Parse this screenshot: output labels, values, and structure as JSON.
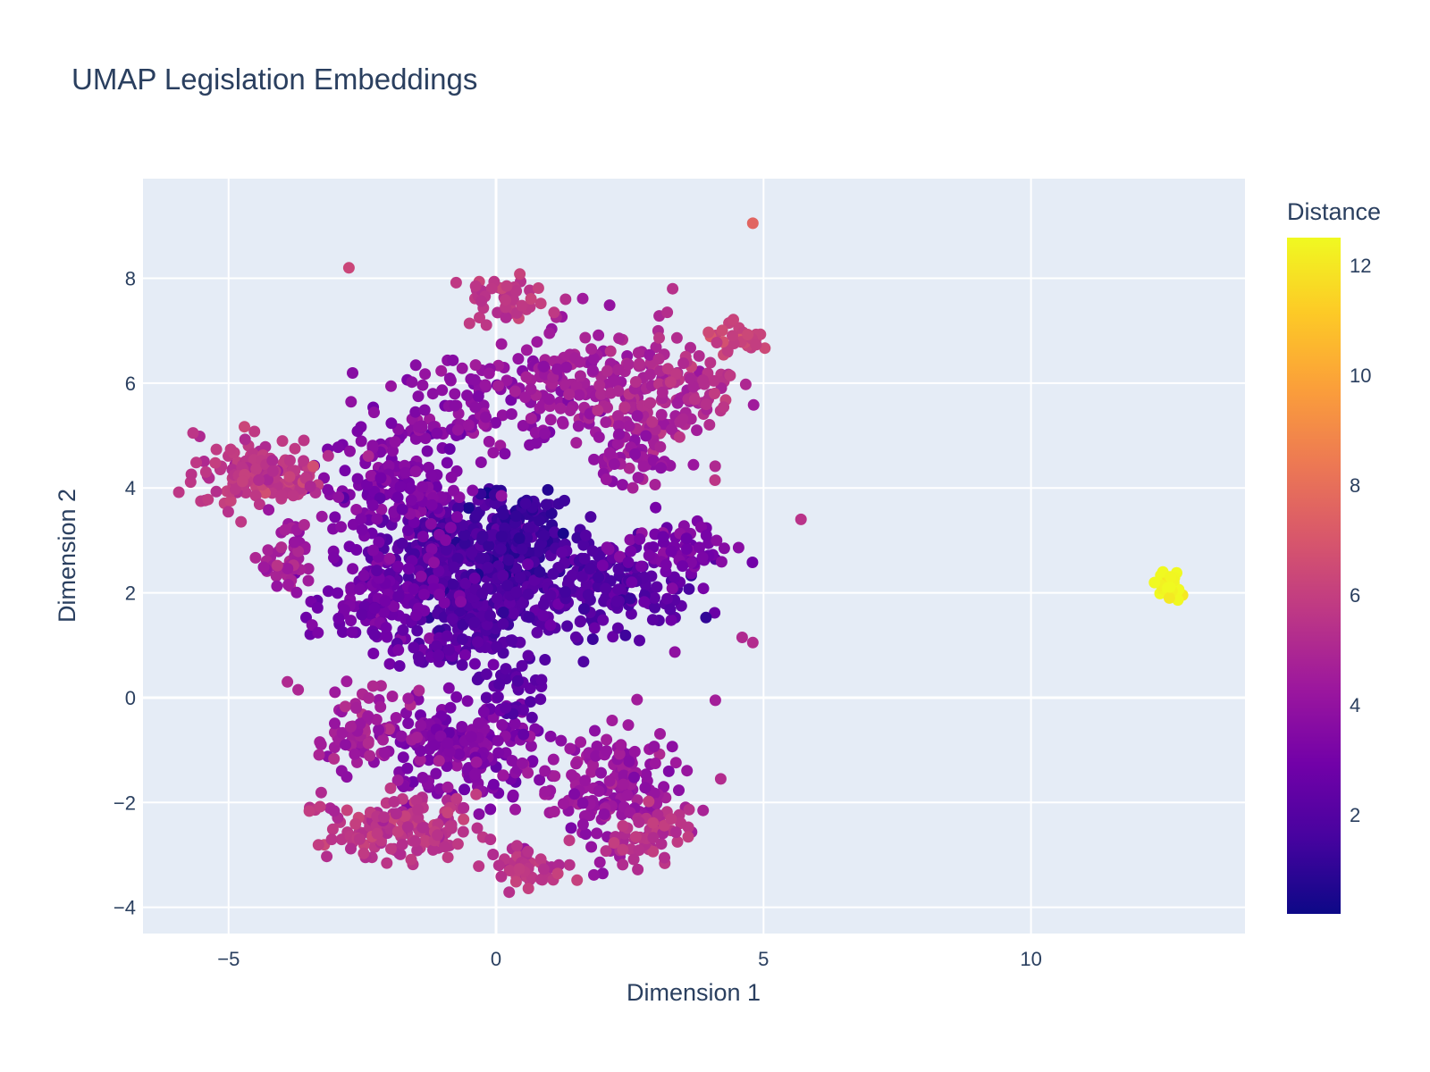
{
  "chart_data": {
    "type": "scatter",
    "title": "UMAP Legislation Embeddings",
    "xlabel": "Dimension 1",
    "ylabel": "Dimension 2",
    "xlim": [
      -6.6,
      14.0
    ],
    "ylim": [
      -4.5,
      9.9
    ],
    "xticks": [
      -5,
      0,
      5,
      10
    ],
    "xtick_labels": [
      "−5",
      "0",
      "5",
      "10"
    ],
    "yticks": [
      -4,
      -2,
      0,
      2,
      4,
      6,
      8
    ],
    "ytick_labels": [
      "−4",
      "−2",
      "0",
      "2",
      "4",
      "6",
      "8"
    ],
    "grid": true,
    "colorbar": {
      "title": "Distance",
      "range": [
        0.2,
        12.5
      ],
      "ticks": [
        2,
        4,
        6,
        8,
        10,
        12
      ],
      "tick_labels": [
        "2",
        "4",
        "6",
        "8",
        "10",
        "12"
      ],
      "colorscale": [
        "#0d0887",
        "#46039f",
        "#7201a8",
        "#9c179e",
        "#bd3786",
        "#d8576b",
        "#ed7953",
        "#fb9f3a",
        "#fdca26",
        "#f0f921"
      ]
    },
    "colors": {
      "plot_bg": "#e5ecf6",
      "grid": "#ffffff",
      "text": "#2a3f5f"
    },
    "clusters": [
      {
        "x": -0.8,
        "y": 2.7,
        "sx": 0.75,
        "sy": 0.55,
        "n": 260,
        "color_value": 2.0
      },
      {
        "x": 0.3,
        "y": 3.1,
        "sx": 0.6,
        "sy": 0.45,
        "n": 160,
        "color_value": 1.3
      },
      {
        "x": -0.3,
        "y": 1.7,
        "sx": 0.6,
        "sy": 0.45,
        "n": 150,
        "color_value": 1.8
      },
      {
        "x": 2.0,
        "y": 2.1,
        "sx": 0.8,
        "sy": 0.45,
        "n": 190,
        "color_value": 2.1
      },
      {
        "x": 3.3,
        "y": 2.8,
        "sx": 0.55,
        "sy": 0.3,
        "n": 70,
        "color_value": 3.2
      },
      {
        "x": -2.1,
        "y": 1.8,
        "sx": 0.55,
        "sy": 0.45,
        "n": 130,
        "color_value": 3.0
      },
      {
        "x": -1.9,
        "y": 4.0,
        "sx": 0.7,
        "sy": 0.55,
        "n": 160,
        "color_value": 3.3
      },
      {
        "x": -4.4,
        "y": 4.3,
        "sx": 0.6,
        "sy": 0.35,
        "n": 140,
        "color_value": 5.7
      },
      {
        "x": -3.9,
        "y": 2.6,
        "sx": 0.25,
        "sy": 0.45,
        "n": 45,
        "color_value": 4.6
      },
      {
        "x": -0.5,
        "y": 5.5,
        "sx": 0.9,
        "sy": 0.45,
        "n": 110,
        "color_value": 3.8
      },
      {
        "x": 1.4,
        "y": 6.0,
        "sx": 0.6,
        "sy": 0.45,
        "n": 110,
        "color_value": 4.4
      },
      {
        "x": 2.9,
        "y": 5.6,
        "sx": 0.5,
        "sy": 0.7,
        "n": 120,
        "color_value": 4.9
      },
      {
        "x": 2.5,
        "y": 4.6,
        "sx": 0.35,
        "sy": 0.3,
        "n": 45,
        "color_value": 4.2
      },
      {
        "x": 3.6,
        "y": 6.0,
        "sx": 0.5,
        "sy": 0.35,
        "n": 55,
        "color_value": 5.3
      },
      {
        "x": 4.5,
        "y": 6.9,
        "sx": 0.3,
        "sy": 0.15,
        "n": 30,
        "color_value": 6.2
      },
      {
        "x": 0.2,
        "y": 7.6,
        "sx": 0.4,
        "sy": 0.25,
        "n": 45,
        "color_value": 5.6
      },
      {
        "x": -0.6,
        "y": -1.0,
        "sx": 0.8,
        "sy": 0.45,
        "n": 200,
        "color_value": 3.4
      },
      {
        "x": -2.5,
        "y": -0.6,
        "sx": 0.45,
        "sy": 0.35,
        "n": 70,
        "color_value": 4.6
      },
      {
        "x": 2.1,
        "y": -1.7,
        "sx": 0.65,
        "sy": 0.6,
        "n": 180,
        "color_value": 4.2
      },
      {
        "x": -1.8,
        "y": -2.5,
        "sx": 0.7,
        "sy": 0.3,
        "n": 150,
        "color_value": 5.5
      },
      {
        "x": 0.6,
        "y": -3.2,
        "sx": 0.4,
        "sy": 0.2,
        "n": 50,
        "color_value": 5.6
      },
      {
        "x": 2.9,
        "y": -2.6,
        "sx": 0.4,
        "sy": 0.25,
        "n": 50,
        "color_value": 5.4
      },
      {
        "x": 0.3,
        "y": 0.3,
        "sx": 0.3,
        "sy": 0.4,
        "n": 40,
        "color_value": 2.3
      },
      {
        "x": -1.0,
        "y": 0.9,
        "sx": 0.5,
        "sy": 0.2,
        "n": 40,
        "color_value": 2.6
      },
      {
        "x": 12.6,
        "y": 2.15,
        "sx": 0.12,
        "sy": 0.15,
        "n": 30,
        "color_value": 12.4
      }
    ],
    "points": [
      {
        "x": 4.8,
        "y": 9.05,
        "color_value": 7.6
      },
      {
        "x": -2.75,
        "y": 8.2,
        "color_value": 6.3
      },
      {
        "x": 5.7,
        "y": 3.4,
        "color_value": 5.5
      },
      {
        "x": 4.8,
        "y": 1.05,
        "color_value": 5.2
      },
      {
        "x": 4.6,
        "y": 1.15,
        "color_value": 5.1
      },
      {
        "x": -3.9,
        "y": 0.3,
        "color_value": 5.1
      },
      {
        "x": -3.7,
        "y": 0.15,
        "color_value": 5.0
      },
      {
        "x": 4.1,
        "y": -0.05,
        "color_value": 4.6
      },
      {
        "x": 4.2,
        "y": -1.55,
        "color_value": 5.2
      },
      {
        "x": 3.3,
        "y": 7.8,
        "color_value": 5.4
      },
      {
        "x": 3.2,
        "y": 7.35,
        "color_value": 5.3
      },
      {
        "x": 1.3,
        "y": 7.6,
        "color_value": 5.3
      },
      {
        "x": 0.6,
        "y": 0.8,
        "color_value": 2.4
      }
    ]
  }
}
